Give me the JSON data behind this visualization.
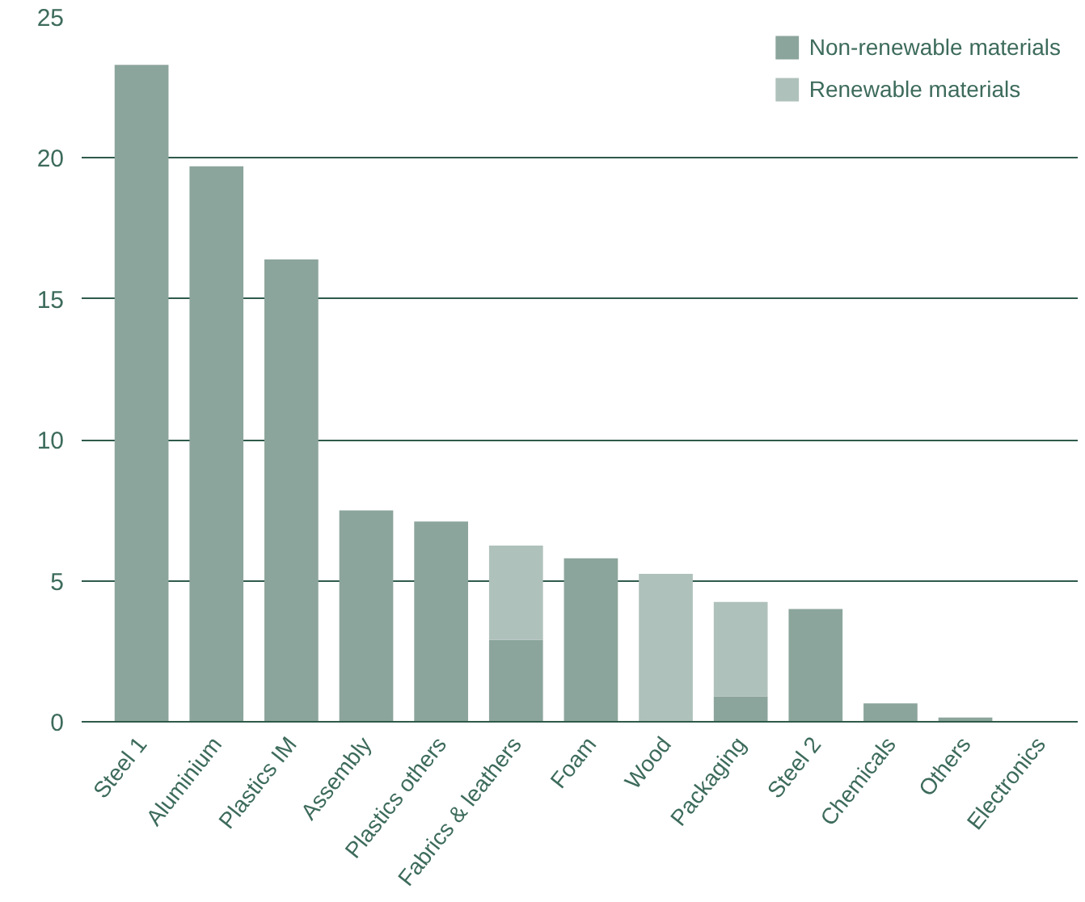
{
  "chart_data": {
    "type": "bar",
    "stacked": true,
    "categories": [
      "Steel 1",
      "Aluminium",
      "Plastics IM",
      "Assembly",
      "Plastics others",
      "Fabrics & leathers",
      "Foam",
      "Wood",
      "Packaging",
      "Steel 2",
      "Chemicals",
      "Others",
      "Electronics"
    ],
    "series": [
      {
        "name": "Non-renewable materials",
        "color": "#8ca59c",
        "values": [
          23.3,
          19.7,
          16.4,
          7.5,
          7.1,
          2.9,
          5.8,
          0,
          0.9,
          4.0,
          0.65,
          0.15,
          0
        ]
      },
      {
        "name": "Renewable materials",
        "color": "#afc1bb",
        "values": [
          0,
          0,
          0,
          0,
          0,
          3.35,
          0,
          5.25,
          3.35,
          0,
          0,
          0,
          0
        ]
      }
    ],
    "ylim": [
      0,
      25
    ],
    "yticks": [
      0,
      5,
      10,
      15,
      20,
      25
    ],
    "grid": "y",
    "legend": "top right"
  }
}
